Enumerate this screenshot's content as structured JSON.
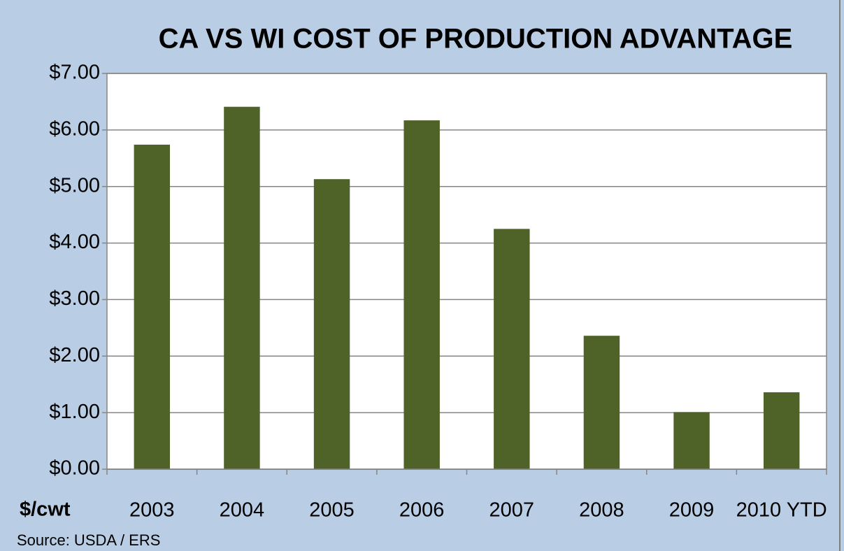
{
  "chart_data": {
    "type": "bar",
    "title": "CA VS WI COST OF PRODUCTION ADVANTAGE",
    "y_axis_label": "$/cwt",
    "source": "Source: USDA / ERS",
    "categories": [
      "2003",
      "2004",
      "2005",
      "2006",
      "2007",
      "2008",
      "2009",
      "2010 YTD"
    ],
    "values": [
      5.74,
      6.41,
      5.13,
      6.17,
      4.25,
      2.36,
      1.01,
      1.36
    ],
    "color": "#4f6228",
    "ylim": [
      0,
      7
    ],
    "yticks": [
      {
        "value": 0,
        "label": "$0.00"
      },
      {
        "value": 1,
        "label": "$1.00"
      },
      {
        "value": 2,
        "label": "$2.00"
      },
      {
        "value": 3,
        "label": "$3.00"
      },
      {
        "value": 4,
        "label": "$4.00"
      },
      {
        "value": 5,
        "label": "$5.00"
      },
      {
        "value": 6,
        "label": "$6.00"
      },
      {
        "value": 7,
        "label": "$7.00"
      }
    ],
    "grid": true
  }
}
